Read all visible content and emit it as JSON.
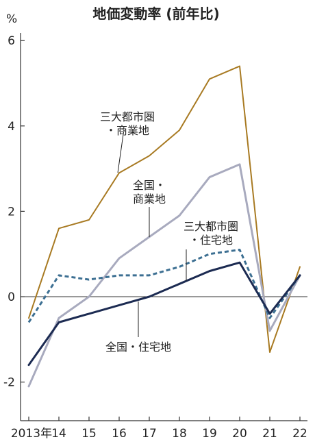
{
  "chart_data": {
    "type": "line",
    "title": "地価変動率 (前年比)",
    "ylabel": "%",
    "xlabel": "",
    "ylim": [
      -2.8,
      6.3
    ],
    "yticks": [
      -2,
      0,
      2,
      4,
      6
    ],
    "x_tick_labels": [
      "2013年",
      "14",
      "15",
      "16",
      "17",
      "18",
      "19",
      "20",
      "21",
      "22"
    ],
    "series": [
      {
        "name": "三大都市圏・商業地",
        "label_lines": [
          "三大都市圏",
          "・商業地"
        ],
        "color": "#a87a22",
        "style": "solid",
        "values": [
          -0.5,
          1.6,
          1.8,
          2.9,
          3.3,
          3.9,
          5.1,
          5.4,
          -1.3,
          0.7
        ]
      },
      {
        "name": "全国・商業地",
        "label_lines": [
          "全国・",
          "商業地"
        ],
        "color": "#a8aabe",
        "style": "solid",
        "values": [
          -2.1,
          -0.5,
          0.0,
          0.9,
          1.4,
          1.9,
          2.8,
          3.1,
          -0.8,
          0.5
        ]
      },
      {
        "name": "三大都市圏・住宅地",
        "label_lines": [
          "三大都市圏",
          "・住宅地"
        ],
        "color": "#3c6f92",
        "style": "dashed",
        "values": [
          -0.6,
          0.5,
          0.4,
          0.5,
          0.5,
          0.7,
          1.0,
          1.1,
          -0.5,
          0.5
        ]
      },
      {
        "name": "全国・住宅地",
        "label_lines": [
          "全国・住宅地"
        ],
        "color": "#1c2b52",
        "style": "solid",
        "values": [
          -1.6,
          -0.6,
          -0.4,
          -0.2,
          0.0,
          0.3,
          0.6,
          0.8,
          -0.4,
          0.5
        ]
      }
    ]
  }
}
